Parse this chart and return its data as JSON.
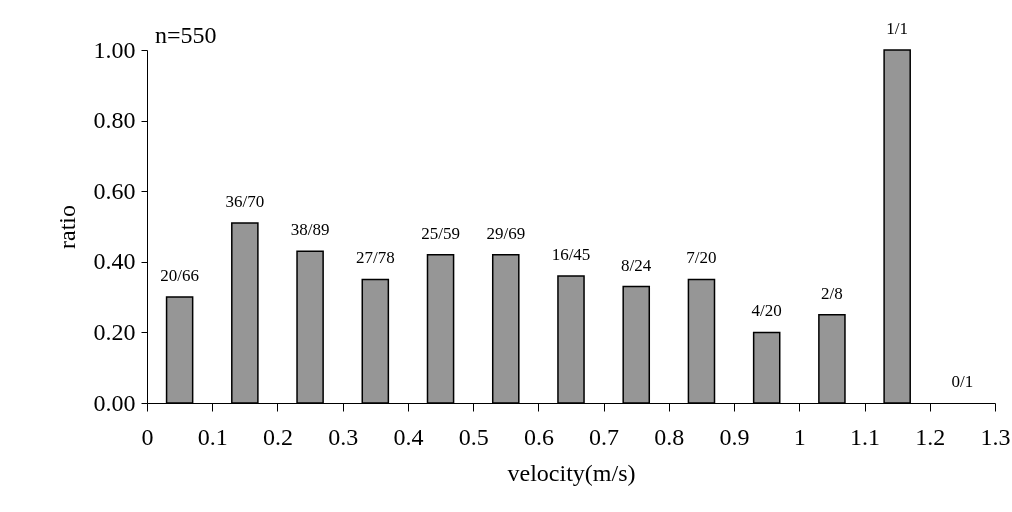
{
  "chart_data": {
    "type": "histogram",
    "xlabel": "velocity(m/s)",
    "ylabel": "ratio",
    "bins": [
      0,
      0.1,
      0.2,
      0.3,
      0.4,
      0.5,
      0.6,
      0.7,
      0.8,
      0.9,
      1,
      1.1,
      1.2,
      1.3
    ],
    "values": [
      0.3,
      0.51,
      0.43,
      0.35,
      0.42,
      0.42,
      0.36,
      0.33,
      0.35,
      0.2,
      0.25,
      1,
      0
    ],
    "value_labels": [
      "20/66",
      "36/70",
      "38/89",
      "27/78",
      "25/59",
      "29/69",
      "16/45",
      "8/24",
      "7/20",
      "4/20",
      "2/8",
      "1/1",
      "0/1"
    ],
    "color": "#969696",
    "xlim": [
      0,
      1.3
    ],
    "xticks": [
      0,
      0.1,
      0.2,
      0.3,
      0.4,
      0.5,
      0.6,
      0.7,
      0.8,
      0.9,
      1,
      1.1,
      1.2,
      1.3
    ],
    "ylim": [
      0,
      1
    ],
    "yticks": [
      {
        "value": 0,
        "label": "0.00"
      },
      {
        "value": 0.2,
        "label": "0.20"
      },
      {
        "value": 0.4,
        "label": "0.40"
      },
      {
        "value": 0.6,
        "label": "0.60"
      },
      {
        "value": 0.8,
        "label": "0.80"
      },
      {
        "value": 1,
        "label": "1.00"
      }
    ],
    "annotations": [
      "n=550"
    ],
    "grid": false
  }
}
